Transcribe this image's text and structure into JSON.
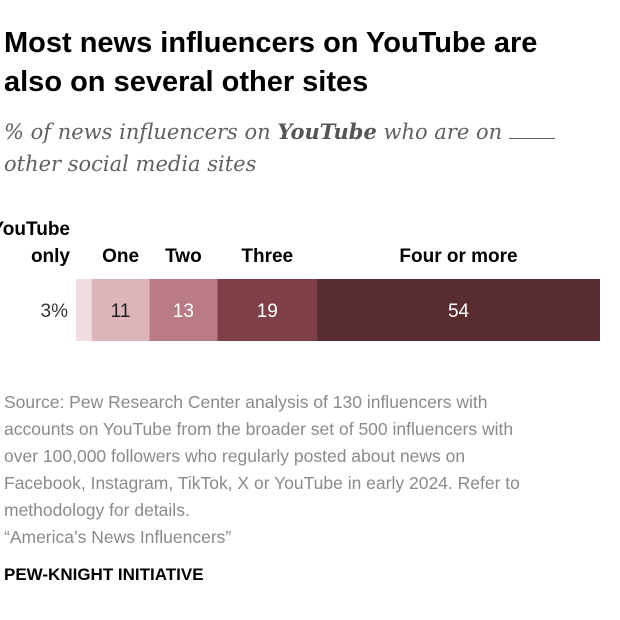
{
  "title_line1": "Most news influencers on YouTube are",
  "title_line2": "also on several other sites",
  "subtitle_part1": "% of news influencers on ",
  "subtitle_emph": "YouTube",
  "subtitle_part2": " who are on",
  "subtitle_line2": "other social media sites",
  "source_lines": [
    "Source: Pew Research Center analysis of 130 influencers with",
    "accounts on YouTube from the broader set of 500 influencers with",
    "over 100,000 followers who regularly posted about news on",
    "Facebook, Instagram, TikTok, X or YouTube in early 2024. Refer to",
    "methodology for details."
  ],
  "report_title": "“America’s News Influencers”",
  "brand": "PEW-KNIGHT INITIATIVE",
  "chart_data": {
    "type": "bar",
    "orientation": "horizontal-stacked",
    "title": "Most news influencers on YouTube are also on several other sites",
    "categories": [
      "YouTube only",
      "One",
      "Two",
      "Three",
      "Four or more"
    ],
    "header_lines": [
      [
        "YouTube",
        "only"
      ],
      [
        "One"
      ],
      [
        "Two"
      ],
      [
        "Three"
      ],
      [
        "Four or more"
      ]
    ],
    "values": [
      3,
      11,
      13,
      19,
      54
    ],
    "value_labels": [
      "3%",
      "11",
      "13",
      "19",
      "54"
    ],
    "colors": [
      "#f0dde0",
      "#ddb4ba",
      "#b97c86",
      "#7e3f49",
      "#592c32"
    ],
    "label_colors": [
      "#333333",
      "#222222",
      "#ffffff",
      "#ffffff",
      "#ffffff"
    ],
    "xlim": [
      0,
      100
    ]
  }
}
